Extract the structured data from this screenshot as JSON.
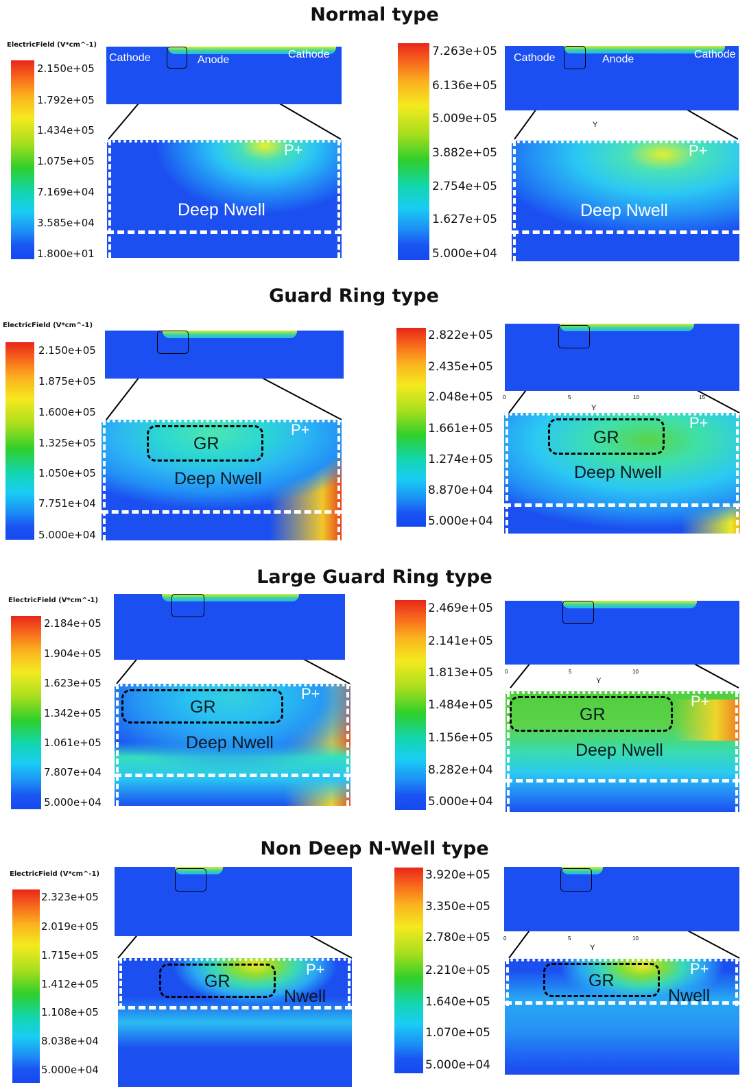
{
  "titles": {
    "normal": "Normal type",
    "guard": "Guard Ring type",
    "large": "Large Guard Ring type",
    "nondeep": "Non Deep N-Well type"
  },
  "legend_title": "ElectricField (V*cm^-1)",
  "axis": {
    "y": "Y",
    "t0": "0",
    "t5": "5",
    "t10": "10",
    "t15": "15"
  },
  "labels": {
    "cathode": "Cathode",
    "anode": "Anode",
    "p_plus": "P+",
    "deep_nwell": "Deep Nwell",
    "nwell": "Nwell",
    "gr": "GR"
  },
  "legends": {
    "normal_left": [
      "2.150e+05",
      "1.792e+05",
      "1.434e+05",
      "1.075e+05",
      "7.169e+04",
      "3.585e+04",
      "1.800e+01"
    ],
    "normal_right": [
      "7.263e+05",
      "6.136e+05",
      "5.009e+05",
      "3.882e+05",
      "2.754e+05",
      "1.627e+05",
      "5.000e+04"
    ],
    "guard_left": [
      "2.150e+05",
      "1.875e+05",
      "1.600e+05",
      "1.325e+05",
      "1.050e+05",
      "7.751e+04",
      "5.000e+04"
    ],
    "guard_right": [
      "2.822e+05",
      "2.435e+05",
      "2.048e+05",
      "1.661e+05",
      "1.274e+05",
      "8.870e+04",
      "5.000e+04"
    ],
    "large_left": [
      "2.184e+05",
      "1.904e+05",
      "1.623e+05",
      "1.342e+05",
      "1.061e+05",
      "7.807e+04",
      "5.000e+04"
    ],
    "large_right": [
      "2.469e+05",
      "2.141e+05",
      "1.813e+05",
      "1.484e+05",
      "1.156e+05",
      "8.282e+04",
      "5.000e+04"
    ],
    "nondeep_left": [
      "2.323e+05",
      "2.019e+05",
      "1.715e+05",
      "1.412e+05",
      "1.108e+05",
      "8.038e+04",
      "5.000e+04"
    ],
    "nondeep_right": [
      "3.920e+05",
      "3.350e+05",
      "2.780e+05",
      "2.210e+05",
      "1.640e+05",
      "1.070e+05",
      "5.000e+04"
    ]
  }
}
